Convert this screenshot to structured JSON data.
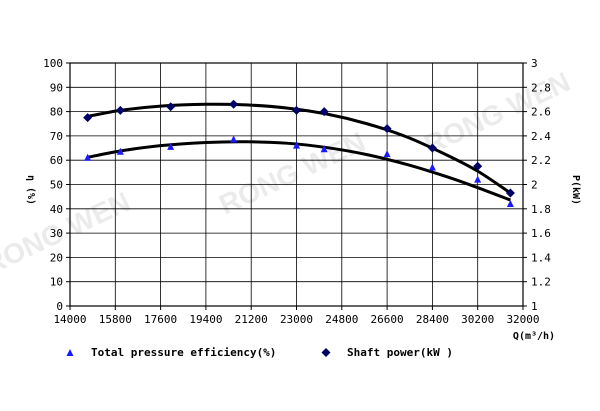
{
  "chart_data": {
    "type": "scatter",
    "x_axis": {
      "label": "Q(m³/h)",
      "range": [
        14000,
        32000
      ],
      "ticks": [
        "14000",
        "15800",
        "17600",
        "19400",
        "21200",
        "23000",
        "24800",
        "26600",
        "28400",
        "30200",
        "32000"
      ]
    },
    "y_left": {
      "label": "η (%)",
      "range": [
        0,
        100
      ],
      "ticks": [
        "0",
        "10",
        "20",
        "30",
        "40",
        "50",
        "60",
        "70",
        "80",
        "90",
        "100"
      ]
    },
    "y_right": {
      "label": "P(kW)",
      "range": [
        1,
        3
      ],
      "ticks": [
        "1",
        "1.2",
        "1.4",
        "1.6",
        "1.8",
        "2",
        "2.2",
        "2.4",
        "2.6",
        "2.8",
        "3"
      ]
    },
    "grid": true,
    "legend_position": "bottom",
    "series": [
      {
        "name": "Total pressure efficiency(%)",
        "axis": "left",
        "marker": "triangle",
        "color": "#1a1aff",
        "x": [
          14700,
          16000,
          18000,
          20500,
          23000,
          24100,
          26600,
          28400,
          30200,
          31500
        ],
        "y": [
          61,
          63.5,
          65.5,
          68.5,
          66,
          64.5,
          62.5,
          57,
          52,
          42
        ],
        "fit_x": [
          14700,
          16000,
          17600,
          19400,
          21000,
          22600,
          24200,
          25800,
          27400,
          29000,
          30200,
          31500
        ],
        "fit_y": [
          61.2,
          63.8,
          66.0,
          67.3,
          67.6,
          67.0,
          65.2,
          62.3,
          58.2,
          53.1,
          48.7,
          43.6
        ]
      },
      {
        "name": "Shaft power(kW )",
        "axis": "right",
        "marker": "diamond",
        "color": "#000066",
        "x": [
          14700,
          16000,
          18000,
          20500,
          23000,
          24100,
          26600,
          28400,
          30200,
          31500
        ],
        "y": [
          2.55,
          2.61,
          2.64,
          2.66,
          2.61,
          2.6,
          2.46,
          2.3,
          2.15,
          1.93
        ],
        "fit_x": [
          14700,
          16000,
          17600,
          19400,
          21000,
          22600,
          24200,
          25800,
          27400,
          29000,
          30200,
          31500
        ],
        "fit_y": [
          2.56,
          2.61,
          2.645,
          2.66,
          2.655,
          2.63,
          2.58,
          2.5,
          2.39,
          2.24,
          2.11,
          1.93
        ]
      }
    ]
  },
  "watermarks": [
    "RONG WEN",
    "RONG WEN",
    "RONG WEN"
  ]
}
